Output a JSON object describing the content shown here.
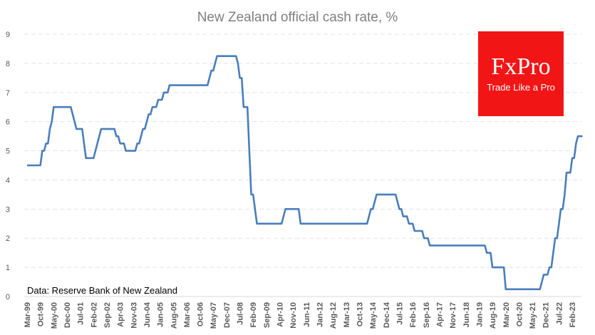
{
  "chart_data": {
    "type": "line",
    "title": "New Zealand official cash rate, %",
    "xlabel": "",
    "ylabel": "",
    "ylim": [
      0,
      9
    ],
    "yticks": [
      "0",
      "1",
      "2",
      "3",
      "4",
      "5",
      "6",
      "7",
      "8",
      "9"
    ],
    "xticks": [
      "Mar-99",
      "Oct-99",
      "May-00",
      "Dec-00",
      "Jul-01",
      "Feb-02",
      "Sep-02",
      "Apr-03",
      "Nov-03",
      "Jun-04",
      "Jan-05",
      "Aug-05",
      "Mar-06",
      "Oct-06",
      "May-07",
      "Dec-07",
      "Jul-08",
      "Feb-09",
      "Sep-09",
      "Apr-10",
      "Nov-10",
      "Jun-11",
      "Jan-12",
      "Aug-12",
      "Mar-13",
      "Oct-13",
      "May-14",
      "Dec-14",
      "Jul-15",
      "Feb-16",
      "Sep-16",
      "Apr-17",
      "Nov-17",
      "Jun-18",
      "Jan-19",
      "Aug-19",
      "Mar-20",
      "Oct-20",
      "May-21",
      "Dec-21",
      "Jul-22",
      "Feb-23"
    ],
    "grid": true,
    "color": "#4a7ebb",
    "series": [
      {
        "points": [
          [
            "1999-03",
            4.5
          ],
          [
            "1999-11",
            5.0
          ],
          [
            "2000-01",
            5.25
          ],
          [
            "2000-03",
            5.75
          ],
          [
            "2000-04",
            6.0
          ],
          [
            "2000-05",
            6.5
          ],
          [
            "2001-03",
            6.25
          ],
          [
            "2001-04",
            6.0
          ],
          [
            "2001-05",
            5.75
          ],
          [
            "2001-09",
            5.25
          ],
          [
            "2001-10",
            4.75
          ],
          [
            "2002-01",
            4.75
          ],
          [
            "2002-03",
            5.0
          ],
          [
            "2002-04",
            5.25
          ],
          [
            "2002-05",
            5.5
          ],
          [
            "2002-06",
            5.75
          ],
          [
            "2003-02",
            5.5
          ],
          [
            "2003-04",
            5.25
          ],
          [
            "2003-07",
            5.0
          ],
          [
            "2004-01",
            5.25
          ],
          [
            "2004-03",
            5.5
          ],
          [
            "2004-04",
            5.75
          ],
          [
            "2004-06",
            6.0
          ],
          [
            "2004-07",
            6.25
          ],
          [
            "2004-09",
            6.5
          ],
          [
            "2004-12",
            6.75
          ],
          [
            "2005-03",
            7.0
          ],
          [
            "2005-06",
            7.25
          ],
          [
            "2007-03",
            7.5
          ],
          [
            "2007-04",
            7.75
          ],
          [
            "2007-06",
            8.0
          ],
          [
            "2007-07",
            8.25
          ],
          [
            "2008-06",
            8.0
          ],
          [
            "2008-07",
            7.5
          ],
          [
            "2008-09",
            6.5
          ],
          [
            "2008-12",
            5.0
          ],
          [
            "2009-01",
            3.5
          ],
          [
            "2009-03",
            3.0
          ],
          [
            "2009-04",
            2.5
          ],
          [
            "2010-06",
            2.75
          ],
          [
            "2010-07",
            3.0
          ],
          [
            "2011-03",
            2.5
          ],
          [
            "2014-03",
            2.75
          ],
          [
            "2014-04",
            3.0
          ],
          [
            "2014-06",
            3.25
          ],
          [
            "2014-07",
            3.5
          ],
          [
            "2015-06",
            3.25
          ],
          [
            "2015-07",
            3.0
          ],
          [
            "2015-09",
            2.75
          ],
          [
            "2015-12",
            2.5
          ],
          [
            "2016-03",
            2.25
          ],
          [
            "2016-08",
            2.0
          ],
          [
            "2016-11",
            1.75
          ],
          [
            "2019-05",
            1.5
          ],
          [
            "2019-08",
            1.0
          ],
          [
            "2020-03",
            0.25
          ],
          [
            "2021-10",
            0.5
          ],
          [
            "2021-11",
            0.75
          ],
          [
            "2022-02",
            1.0
          ],
          [
            "2022-04",
            1.5
          ],
          [
            "2022-05",
            2.0
          ],
          [
            "2022-07",
            2.5
          ],
          [
            "2022-08",
            3.0
          ],
          [
            "2022-10",
            3.5
          ],
          [
            "2022-11",
            4.25
          ],
          [
            "2023-02",
            4.75
          ],
          [
            "2023-04",
            5.25
          ],
          [
            "2023-05",
            5.5
          ],
          [
            "2023-07",
            5.5
          ]
        ]
      }
    ]
  },
  "source": "Data: Reserve Bank of New Zealand",
  "logo": {
    "main": "FxPro",
    "tagline": "Trade Like a Pro",
    "color": "#f21516"
  }
}
